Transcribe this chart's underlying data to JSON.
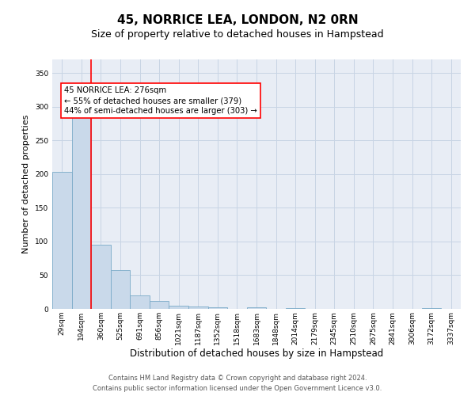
{
  "title": "45, NORRICE LEA, LONDON, N2 0RN",
  "subtitle": "Size of property relative to detached houses in Hampstead",
  "xlabel": "Distribution of detached houses by size in Hampstead",
  "ylabel": "Number of detached properties",
  "categories": [
    "29sqm",
    "194sqm",
    "360sqm",
    "525sqm",
    "691sqm",
    "856sqm",
    "1021sqm",
    "1187sqm",
    "1352sqm",
    "1518sqm",
    "1683sqm",
    "1848sqm",
    "2014sqm",
    "2179sqm",
    "2345sqm",
    "2510sqm",
    "2675sqm",
    "2841sqm",
    "3006sqm",
    "3172sqm",
    "3337sqm"
  ],
  "values": [
    203,
    290,
    95,
    58,
    20,
    12,
    5,
    4,
    2,
    0,
    2,
    0,
    1,
    0,
    0,
    0,
    0,
    0,
    0,
    1,
    0
  ],
  "bar_color": "#c9d9ea",
  "bar_edge_color": "#7aaac8",
  "grid_color": "#c8d4e4",
  "background_color": "#e8edf5",
  "annotation_box_text": "45 NORRICE LEA: 276sqm\n← 55% of detached houses are smaller (379)\n44% of semi-detached houses are larger (303) →",
  "red_line_x": 1.5,
  "ylim": [
    0,
    370
  ],
  "yticks": [
    0,
    50,
    100,
    150,
    200,
    250,
    300,
    350
  ],
  "footer_line1": "Contains HM Land Registry data © Crown copyright and database right 2024.",
  "footer_line2": "Contains public sector information licensed under the Open Government Licence v3.0.",
  "title_fontsize": 11,
  "subtitle_fontsize": 9,
  "tick_fontsize": 6.5,
  "ylabel_fontsize": 8,
  "xlabel_fontsize": 8.5,
  "annotation_fontsize": 7.2,
  "footer_fontsize": 6.0
}
